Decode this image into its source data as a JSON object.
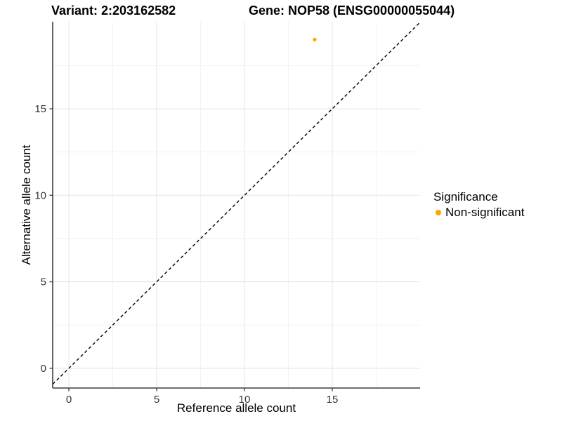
{
  "figure": {
    "title_variant": "Variant: 2:203162582",
    "title_gene": "Gene: NOP58 (ENSG00000055044)"
  },
  "chart_data": {
    "type": "scatter",
    "title": "Variant: 2:203162582   Gene: NOP58 (ENSG00000055044)",
    "xlabel": "Reference allele count",
    "ylabel": "Alternative allele count",
    "xlim": [
      -0.92,
      20.0
    ],
    "ylim": [
      -1.14,
      20.03
    ],
    "x_major_ticks": [
      0,
      5,
      10,
      15
    ],
    "y_major_ticks": [
      0,
      5,
      10,
      15
    ],
    "x_minor_gridlines": [
      2.5,
      7.5,
      12.5,
      17.5
    ],
    "y_minor_gridlines": [
      2.5,
      7.5,
      12.5,
      17.5
    ],
    "grid": "major and minor gridlines on white background",
    "legend_position": "right, vertically centered",
    "identity_line": {
      "equation": "y = x",
      "style": "dashed",
      "color": "#000000",
      "from": -0.92,
      "to": 19.95
    },
    "series": [
      {
        "name": "Non-significant",
        "color": "#FFA500",
        "points": [
          {
            "x": 14,
            "y": 19
          }
        ]
      }
    ]
  },
  "legend": {
    "title": "Significance",
    "items": [
      {
        "label": "Non-significant",
        "color": "#FFA500"
      }
    ]
  },
  "colors": {
    "background": "#FFFFFF",
    "point_orange": "#FFA500",
    "axis_line": "#3F3F3F",
    "major_grid": "#E7E7E7",
    "minor_grid": "#F2F2F2",
    "tick_label": "#333333",
    "identity_line": "#000000",
    "title_text": "#000000"
  }
}
